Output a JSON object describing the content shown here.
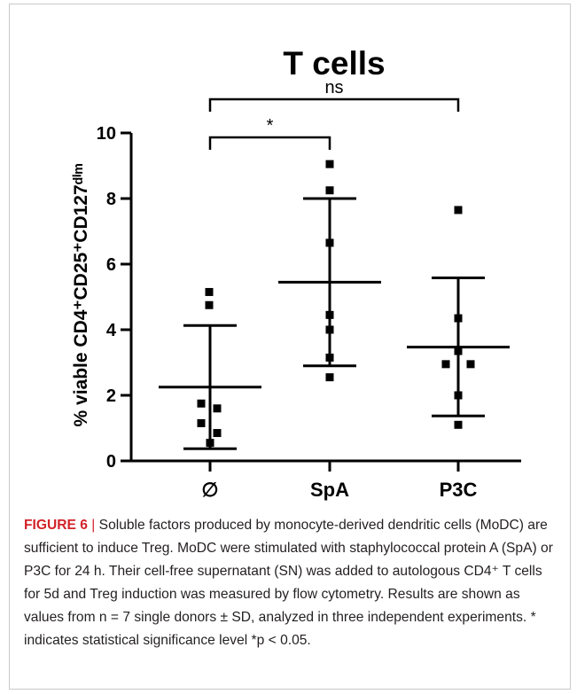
{
  "figure": {
    "label": "FIGURE 6",
    "separator": "|",
    "caption": "Soluble factors produced by monocyte-derived dendritic cells (MoDC) are sufficient to induce Treg. MoDC were stimulated with staphylococcal protein A (SpA) or P3C for 24 h. Their cell-free supernatant (SN) was added to autologous CD4⁺ T cells for 5d and Treg induction was measured by flow cytometry. Results are shown as values from n = 7 single donors ± SD, analyzed in three independent experiments.  * indicates statistical significance level *p < 0.05."
  },
  "chart_data": {
    "type": "scatter",
    "title": "T cells",
    "ylabel": "% viable CD4⁺CD25⁺CD127ᵈⁱᵐ",
    "ylim": [
      0,
      10
    ],
    "yticks": [
      0,
      2,
      4,
      6,
      8,
      10
    ],
    "categories": [
      "∅",
      "SpA",
      "P3C"
    ],
    "points": [
      [
        5.15,
        4.75,
        1.75,
        1.6,
        1.15,
        0.85,
        0.55
      ],
      [
        9.05,
        8.25,
        6.65,
        4.45,
        4.0,
        3.15,
        2.55
      ],
      [
        7.65,
        4.35,
        3.35,
        2.95,
        2.95,
        2.0,
        1.1
      ]
    ],
    "mean": [
      2.25,
      5.45,
      3.47
    ],
    "sd_low": [
      0.37,
      2.9,
      1.37
    ],
    "sd_high": [
      4.13,
      8.0,
      5.58
    ],
    "marker_color": "#000000",
    "significance": [
      {
        "from": 0,
        "to": 1,
        "label": "*"
      },
      {
        "from": 0,
        "to": 2,
        "label": "ns"
      }
    ]
  }
}
